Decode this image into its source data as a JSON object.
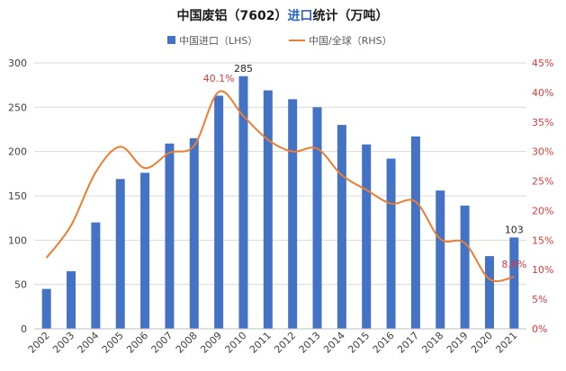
{
  "chart_data": {
    "type": "bar+line",
    "title_parts": [
      {
        "text": "中国废铝（7602）",
        "color": "#1a1a1a"
      },
      {
        "text": "进口",
        "color": "#2b63c6"
      },
      {
        "text": "统计（万吨）",
        "color": "#1a1a1a"
      }
    ],
    "legend": [
      {
        "label": "中国进口（LHS）",
        "kind": "bar",
        "color": "#4472c4"
      },
      {
        "label": "中国/全球（RHS）",
        "kind": "line",
        "color": "#ed7d31"
      }
    ],
    "categories": [
      "2002",
      "2003",
      "2004",
      "2005",
      "2006",
      "2007",
      "2008",
      "2009",
      "2010",
      "2011",
      "2012",
      "2013",
      "2014",
      "2015",
      "2016",
      "2017",
      "2018",
      "2019",
      "2020",
      "2021"
    ],
    "series": [
      {
        "name": "中国进口（LHS）",
        "axis": "left",
        "color": "#4472c4",
        "values": [
          45,
          65,
          120,
          169,
          176,
          209,
          215,
          263,
          285,
          269,
          259,
          250,
          230,
          208,
          192,
          217,
          156,
          139,
          82,
          103
        ]
      },
      {
        "name": "中国/全球（RHS）",
        "axis": "right",
        "color": "#ed7d31",
        "values": [
          12.0,
          17.5,
          26.5,
          30.8,
          27.2,
          29.8,
          31.0,
          40.1,
          36.0,
          32.0,
          30.0,
          30.5,
          26.0,
          23.5,
          21.2,
          21.5,
          15.2,
          14.5,
          8.4,
          8.8
        ]
      }
    ],
    "y_left": {
      "min": 0,
      "max": 300,
      "ticks": [
        "0",
        "50",
        "100",
        "150",
        "200",
        "250",
        "300"
      ]
    },
    "y_right": {
      "min": 0,
      "max": 45,
      "ticks": [
        "0%",
        "5%",
        "10%",
        "15%",
        "20%",
        "25%",
        "30%",
        "35%",
        "40%",
        "45%"
      ]
    },
    "annotations": [
      {
        "series": 0,
        "index": 8,
        "text": "285",
        "color": "#262626"
      },
      {
        "series": 0,
        "index": 19,
        "text": "103",
        "color": "#262626"
      },
      {
        "series": 1,
        "index": 7,
        "text": "40.1%",
        "color": "#e03a3a"
      },
      {
        "series": 1,
        "index": 19,
        "text": "8.8%",
        "color": "#e03a3a"
      }
    ],
    "grid": true
  }
}
